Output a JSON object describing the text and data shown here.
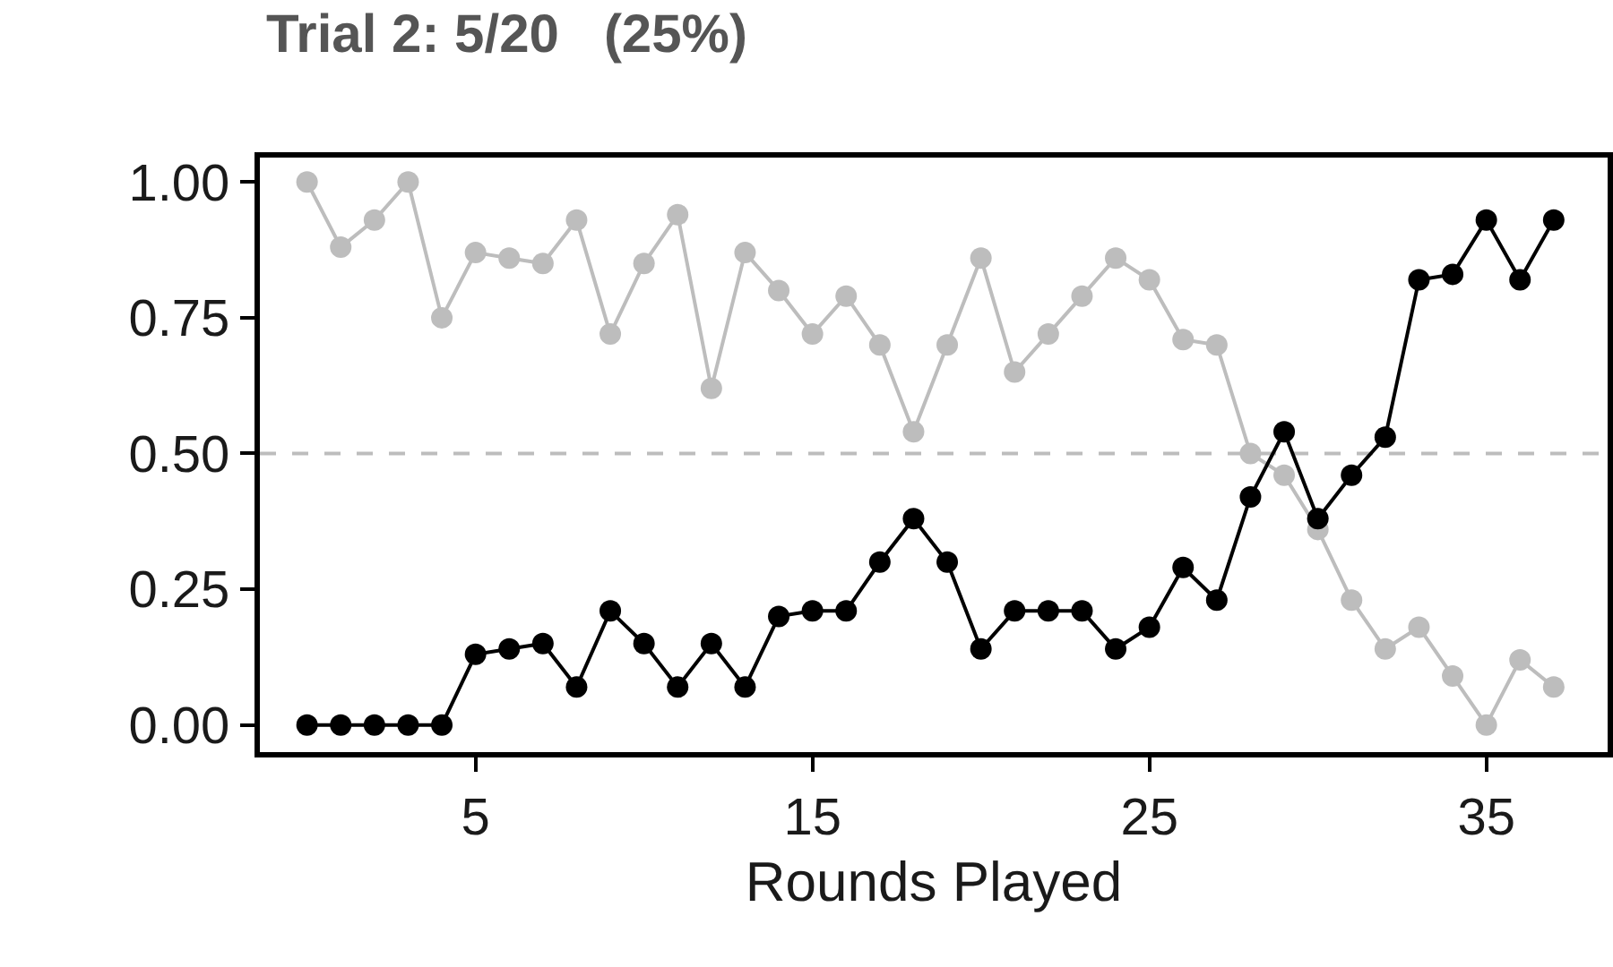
{
  "chart_data": {
    "type": "line",
    "title": "Trial 2: 5/20   (25%)",
    "xlabel": "Rounds Played",
    "x": [
      0,
      1,
      2,
      3,
      4,
      5,
      6,
      7,
      8,
      9,
      10,
      11,
      12,
      13,
      14,
      15,
      16,
      17,
      18,
      19,
      20,
      21,
      22,
      23,
      24,
      25,
      26,
      27,
      28,
      29,
      30,
      31,
      32,
      33,
      34,
      35,
      36,
      37
    ],
    "series": [
      {
        "color": "#bdbdbd",
        "values": [
          1.0,
          0.88,
          0.93,
          1.0,
          0.75,
          0.87,
          0.86,
          0.85,
          0.93,
          0.72,
          0.85,
          0.94,
          0.62,
          0.87,
          0.8,
          0.72,
          0.79,
          0.7,
          0.54,
          0.7,
          0.86,
          0.65,
          0.72,
          0.79,
          0.86,
          0.82,
          0.71,
          0.7,
          0.5,
          0.46,
          0.36,
          0.23,
          0.14,
          0.18,
          0.09,
          0.0,
          0.12,
          0.07
        ]
      },
      {
        "color": "#000000",
        "values": [
          0.0,
          0.0,
          0.0,
          0.0,
          0.0,
          0.13,
          0.14,
          0.15,
          0.07,
          0.21,
          0.15,
          0.07,
          0.15,
          0.07,
          0.2,
          0.21,
          0.21,
          0.3,
          0.38,
          0.3,
          0.14,
          0.21,
          0.21,
          0.21,
          0.14,
          0.18,
          0.29,
          0.23,
          0.42,
          0.54,
          0.38,
          0.46,
          0.53,
          0.82,
          0.83,
          0.93,
          0.82,
          0.93
        ]
      }
    ],
    "xlim": [
      -1.4,
      38.6
    ],
    "xticks": [
      5,
      15,
      25,
      35
    ],
    "ylim": [
      -0.05,
      1.045
    ],
    "yticks": [
      {
        "value": 0,
        "label": "0.00"
      },
      {
        "value": 0.25,
        "label": "0.25"
      },
      {
        "value": 0.5,
        "label": "0.50"
      },
      {
        "value": 0.75,
        "label": "0.75"
      },
      {
        "value": 1,
        "label": "1.00"
      }
    ],
    "ref_lines": [
      {
        "axis": "y",
        "value": 0.5,
        "color": "#bdbdbd",
        "line_style": "dashed"
      }
    ],
    "grid": false,
    "marker": "circle",
    "line_style": "solid"
  }
}
